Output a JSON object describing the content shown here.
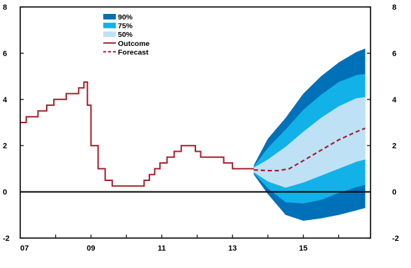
{
  "chart_data": {
    "type": "area",
    "title": "",
    "xlabel": "",
    "ylabel": "",
    "xlim": [
      2007,
      2016.9
    ],
    "ylim": [
      -2,
      8
    ],
    "x_ticks": [
      2007,
      2009,
      2011,
      2013,
      2015
    ],
    "x_tick_labels": [
      "07",
      "09",
      "11",
      "13",
      "15"
    ],
    "y_ticks": [
      8,
      6,
      4,
      2,
      0,
      -2
    ],
    "y_tick_labels": [
      "8",
      "6",
      "4",
      "2",
      "0",
      "-2"
    ],
    "zero_line": true,
    "grid": false,
    "legend_position": "top-left",
    "legend": [
      {
        "label": "90%",
        "kind": "band",
        "color": "#0070b8"
      },
      {
        "label": "75%",
        "kind": "band",
        "color": "#12b2e8"
      },
      {
        "label": "50%",
        "kind": "band",
        "color": "#bfe1f6"
      },
      {
        "label": "Outcome",
        "kind": "line",
        "color": "#a31f2a"
      },
      {
        "label": "Forecast",
        "kind": "dashed",
        "color": "#a31f2a"
      }
    ],
    "outcome": {
      "name": "Outcome",
      "color": "#a31f2a",
      "step": true,
      "x": [
        2007.0,
        2007.17,
        2007.5,
        2007.75,
        2007.95,
        2008.3,
        2008.65,
        2008.8,
        2008.9,
        2009.0,
        2009.2,
        2009.4,
        2009.6,
        2010.0,
        2010.5,
        2010.65,
        2010.8,
        2010.95,
        2011.15,
        2011.35,
        2011.55,
        2011.95,
        2012.1,
        2012.3,
        2012.5,
        2012.75,
        2013.0,
        2013.3,
        2013.6
      ],
      "y": [
        3.0,
        3.25,
        3.5,
        3.75,
        4.0,
        4.25,
        4.5,
        4.75,
        3.75,
        2.0,
        1.0,
        0.5,
        0.25,
        0.25,
        0.5,
        0.75,
        1.0,
        1.25,
        1.5,
        1.75,
        2.0,
        1.75,
        1.5,
        1.5,
        1.5,
        1.25,
        1.0,
        1.0,
        1.0
      ]
    },
    "forecast": {
      "name": "Forecast",
      "color": "#a31f2a",
      "x": [
        2013.6,
        2014.0,
        2014.3,
        2014.6,
        2015.0,
        2015.5,
        2016.0,
        2016.5,
        2016.75
      ],
      "y": [
        0.95,
        0.92,
        0.92,
        1.0,
        1.35,
        1.8,
        2.25,
        2.6,
        2.75
      ]
    },
    "fan": {
      "x": [
        2013.6,
        2014.0,
        2014.5,
        2015.0,
        2015.5,
        2016.0,
        2016.5,
        2016.75
      ],
      "p90_lower": [
        0.75,
        -0.1,
        -1.0,
        -1.25,
        -1.15,
        -1.0,
        -0.8,
        -0.7
      ],
      "p75_lower": [
        0.8,
        0.15,
        -0.45,
        -0.5,
        -0.35,
        -0.05,
        0.2,
        0.3
      ],
      "p50_lower": [
        0.85,
        0.45,
        0.18,
        0.4,
        0.7,
        1.0,
        1.3,
        1.4
      ],
      "p50_upper": [
        1.05,
        1.4,
        1.95,
        2.6,
        3.2,
        3.7,
        4.05,
        4.1
      ],
      "p75_upper": [
        1.1,
        1.9,
        2.7,
        3.55,
        4.2,
        4.75,
        5.05,
        5.1
      ],
      "p90_upper": [
        1.15,
        2.3,
        3.2,
        4.25,
        5.0,
        5.6,
        6.05,
        6.2
      ]
    }
  }
}
